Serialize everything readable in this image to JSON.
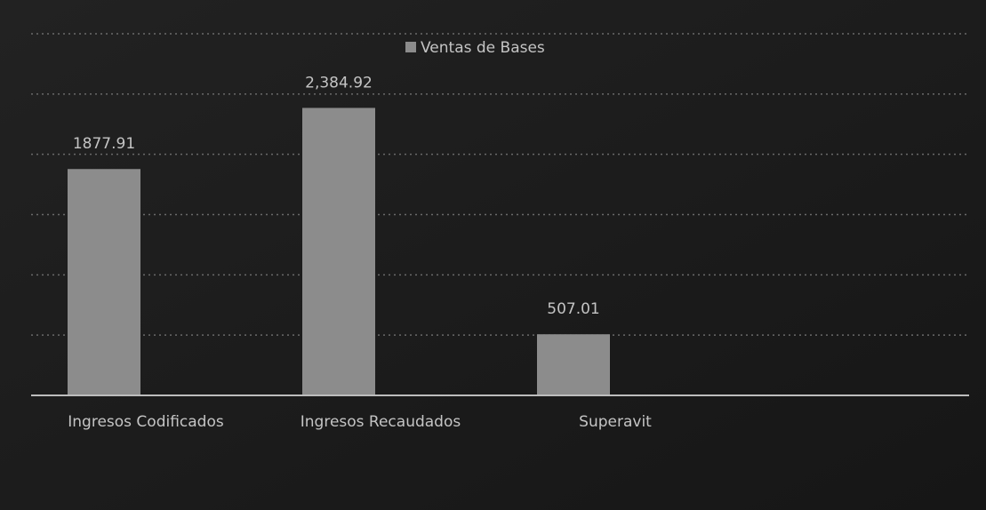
{
  "chart_data": {
    "type": "bar",
    "categories": [
      "Ingresos Codificados",
      "Ingresos Recaudados",
      "Superavit"
    ],
    "series": [
      {
        "name": "Ventas de Bases",
        "color": "#8c8c8c",
        "values": [
          1877.91,
          2384.92,
          507.01
        ],
        "value_labels": [
          "1877.91",
          "2,384.92",
          "507.01"
        ]
      }
    ],
    "ylim": [
      0,
      3000
    ],
    "yticks": [
      0,
      500,
      1000,
      1500,
      2000,
      2500,
      3000
    ],
    "grid": true,
    "legend": "top"
  }
}
